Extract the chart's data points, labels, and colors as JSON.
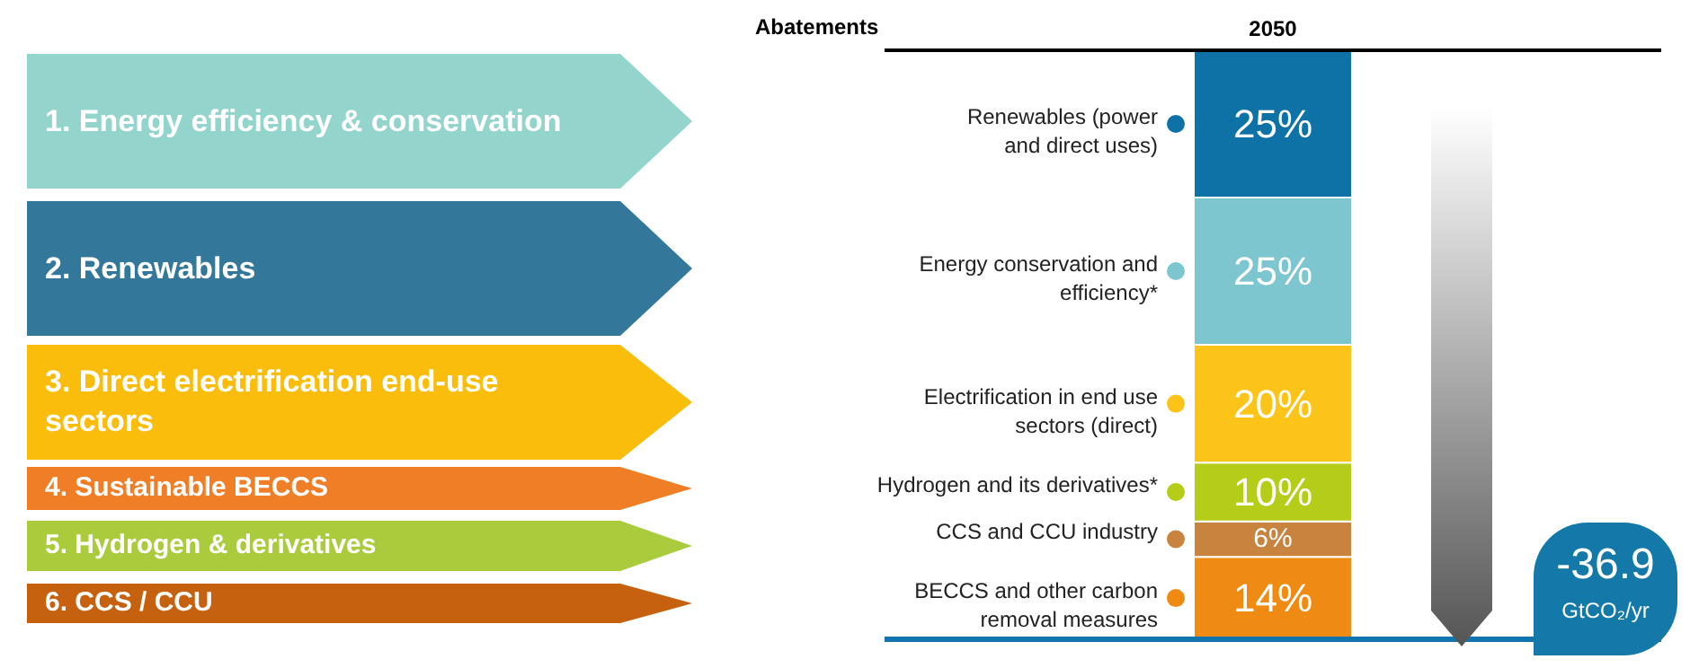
{
  "chart_data": {
    "type": "bar",
    "stacked": true,
    "legend": "left",
    "title": "Abatements",
    "categories": [
      "2050"
    ],
    "series": [
      {
        "name": "BECCS and other carbon removal measures",
        "color": "#ef8a12",
        "values": [
          14
        ],
        "value_labels": [
          "14%"
        ]
      },
      {
        "name": "CCS and CCU industry",
        "color": "#c8843e",
        "values": [
          6
        ],
        "value_labels": [
          "6%"
        ]
      },
      {
        "name": "Hydrogen and its derivatives*",
        "color": "#b5cc18",
        "values": [
          10
        ],
        "value_labels": [
          "10%"
        ]
      },
      {
        "name": "Electrification in end use sectors (direct)",
        "color": "#fcc419",
        "values": [
          20
        ],
        "value_labels": [
          "20%"
        ]
      },
      {
        "name": "Energy conservation and efficiency*",
        "color": "#7ec6cf",
        "values": [
          25
        ],
        "value_labels": [
          "25%"
        ]
      },
      {
        "name": "Renewables (power and direct uses)",
        "color": "#0f72a6",
        "values": [
          25
        ],
        "value_labels": [
          "25%"
        ]
      }
    ],
    "annotations": [
      "1. Energy efficiency & conservation",
      "2. Renewables",
      "3. Direct electrification end-use sectors",
      "4. Sustainable BECCS",
      "5. Hydrogen & derivatives",
      "6. CCS / CCU",
      "-36.9",
      "GtCO₂/yr"
    ]
  }
}
